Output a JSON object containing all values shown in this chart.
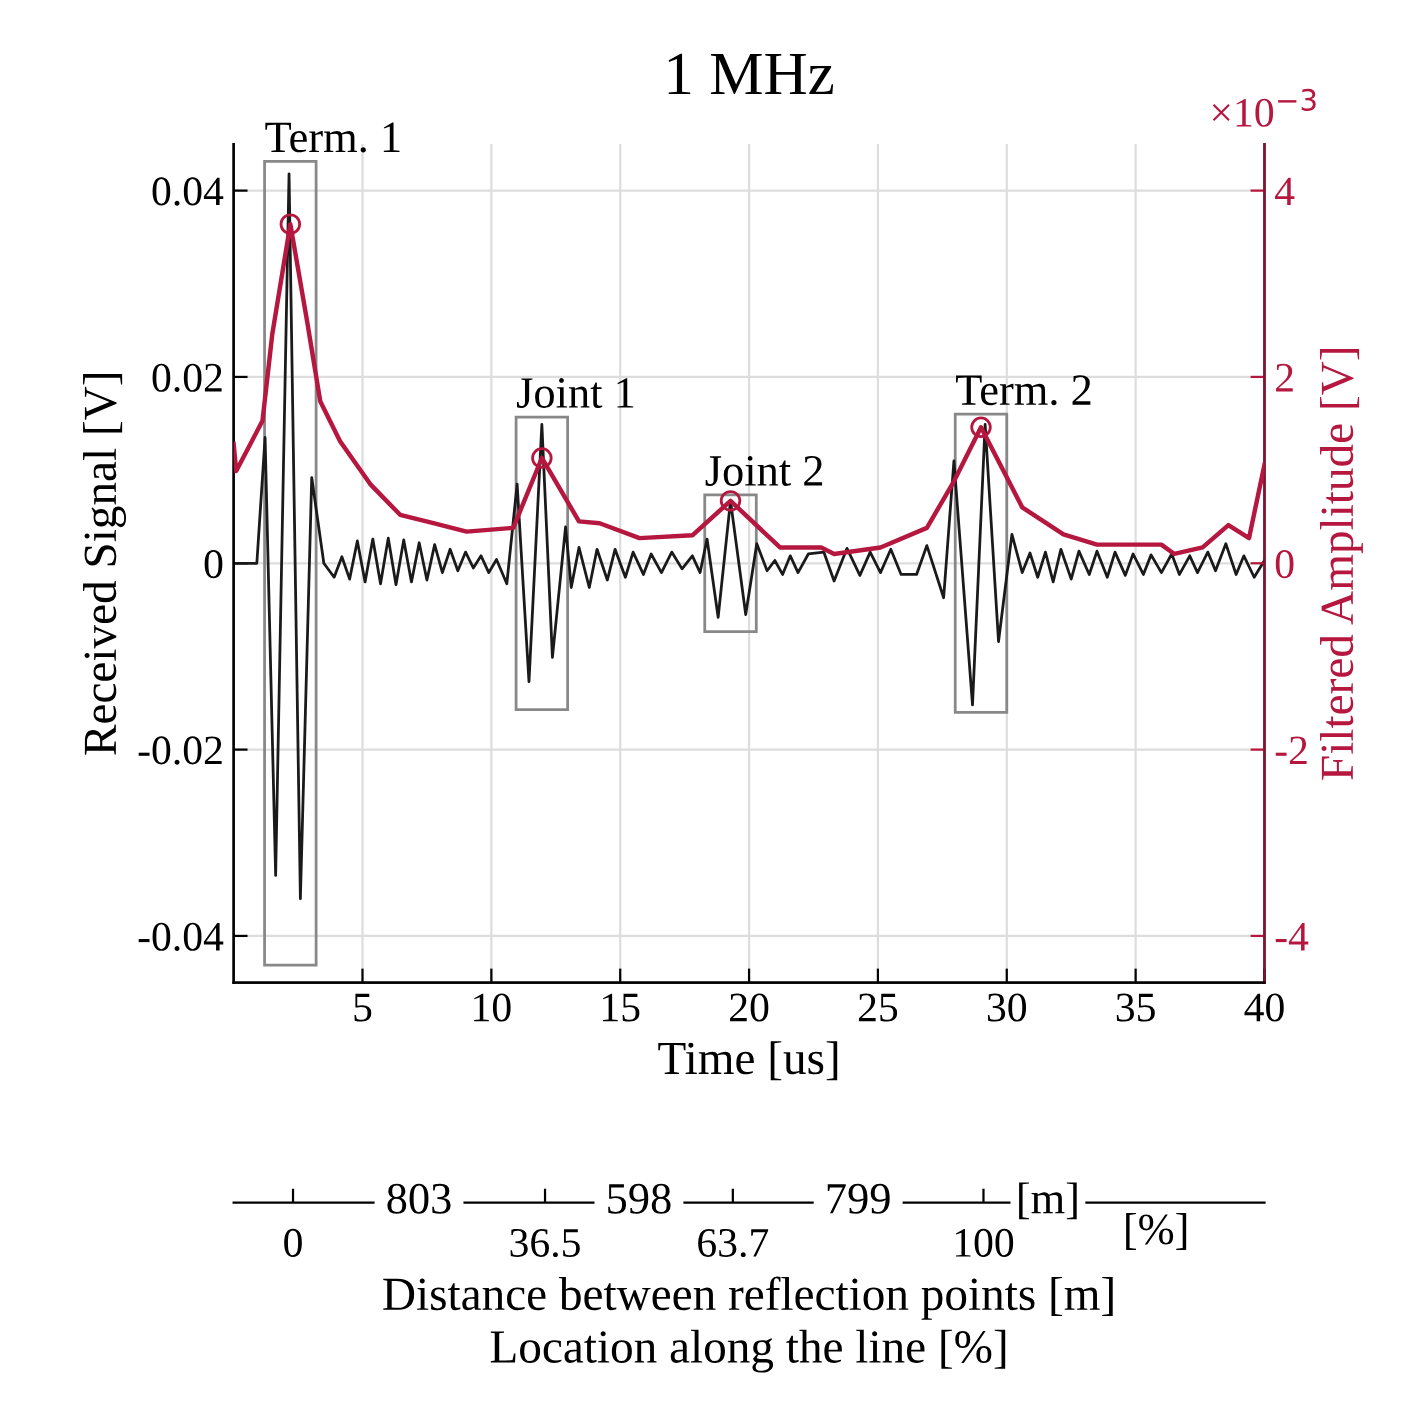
{
  "chart_data": {
    "type": "line",
    "title": "1 MHz",
    "xlabel": "Time [us]",
    "ylabel": "Received Signal [V]",
    "y2label": "Filtered Amplitude [V]",
    "x2label": "Distance between reflection points [m]\nLocation along the line [%]",
    "xlim": [
      0,
      40
    ],
    "xticks": [
      5,
      10,
      15,
      20,
      25,
      30,
      35,
      40
    ],
    "ylim": [
      -0.045,
      0.045
    ],
    "yticks": [
      {
        "value": -0.04,
        "label": "-0.04"
      },
      {
        "value": -0.02,
        "label": "-0.02"
      },
      0,
      0.02,
      0.04
    ],
    "y2lim": [
      -4.5,
      4.5
    ],
    "y2ticks": [
      {
        "value": -4,
        "label": "-4"
      },
      {
        "value": -2,
        "label": "-2"
      },
      0,
      2,
      4
    ],
    "x2lim": [
      -8.6,
      140.7
    ],
    "x2ticks": [
      0,
      36.5,
      63.7,
      100
    ],
    "grid": true,
    "series": [
      {
        "color": "#1a1a1a",
        "marker": "none",
        "x": [
          0,
          0.9,
          1.22,
          1.63,
          2.15,
          2.59,
          3.03,
          3.5,
          3.9,
          4.2,
          4.5,
          4.8,
          5.1,
          5.4,
          5.7,
          6.0,
          6.3,
          6.6,
          6.9,
          7.2,
          7.5,
          7.8,
          8.1,
          8.4,
          8.7,
          9.0,
          9.3,
          9.6,
          9.9,
          10.2,
          10.6,
          11.0,
          11.46,
          11.96,
          12.37,
          12.88,
          13.1,
          13.4,
          13.8,
          14.1,
          14.5,
          14.8,
          15.2,
          15.5,
          15.9,
          16.2,
          16.6,
          17.0,
          17.4,
          17.8,
          18.1,
          18.37,
          18.8,
          19.28,
          19.87,
          20.3,
          20.7,
          21.0,
          21.3,
          21.6,
          21.9,
          22.3,
          22.9,
          23.3,
          23.8,
          24.3,
          24.7,
          25.1,
          25.5,
          25.9,
          26.5,
          26.9,
          27.55,
          27.95,
          28.67,
          29.16,
          29.68,
          30.2,
          30.6,
          30.9,
          31.2,
          31.5,
          31.8,
          32.1,
          32.5,
          32.8,
          33.2,
          33.5,
          33.9,
          34.2,
          34.6,
          34.9,
          35.3,
          35.6,
          36.0,
          36.4,
          36.7,
          37.1,
          37.4,
          37.8,
          38.1,
          38.5,
          38.9,
          39.2,
          39.6,
          40
        ],
        "values": [
          0,
          0,
          0.0135,
          -0.0335,
          0.0418,
          -0.036,
          0.0092,
          0,
          -0.0015,
          0.0007,
          -0.0017,
          0.0024,
          -0.002,
          0.0026,
          -0.0022,
          0.0027,
          -0.0023,
          0.0025,
          -0.002,
          0.0022,
          -0.0018,
          0.002,
          -0.001,
          0.0015,
          -0.0008,
          0.0012,
          -0.0005,
          0.0008,
          -0.001,
          0.0004,
          -0.0022,
          0.0085,
          -0.0127,
          0.0149,
          -0.0101,
          0.0039,
          -0.0026,
          0.0017,
          -0.0026,
          0.0015,
          -0.0018,
          0.0015,
          -0.0015,
          0.0012,
          -0.0012,
          0.001,
          -0.001,
          0.0012,
          -0.0006,
          0.0008,
          -0.001,
          0.0026,
          -0.0058,
          0.0067,
          -0.0055,
          0.0021,
          -0.0008,
          0.0003,
          -0.0012,
          0.0008,
          -0.001,
          0.001,
          0.0012,
          -0.0019,
          0.0016,
          -0.0013,
          0.0012,
          -0.001,
          0.0015,
          -0.0012,
          -0.0012,
          0.0019,
          -0.0037,
          0.011,
          -0.0152,
          0.0149,
          -0.0084,
          0.0031,
          -0.001,
          0.0011,
          -0.0015,
          0.0012,
          -0.002,
          0.0015,
          -0.0017,
          0.0013,
          -0.0012,
          0.0013,
          -0.0015,
          0.0012,
          -0.0013,
          0.001,
          -0.0012,
          0.0009,
          -0.001,
          0.001,
          -0.0012,
          0.0008,
          -0.001,
          0.0012,
          -0.0008,
          0.0021,
          -0.0012,
          0.0008,
          -0.0015,
          0.0003
        ]
      },
      {
        "axis": "y2",
        "color": "#b5173f",
        "marker": "none",
        "x": [
          0,
          0.1,
          1.12,
          1.5,
          2.2,
          2.85,
          3.36,
          4.13,
          5.3,
          6.46,
          7.75,
          9.04,
          10.85,
          11.96,
          13.4,
          14.2,
          15.75,
          17.8,
          19.28,
          21.2,
          22.8,
          23.3,
          25.1,
          26.9,
          27.95,
          29.0,
          30.6,
          32.2,
          33.5,
          36.0,
          36.5,
          37.6,
          38.6,
          39.4,
          40
        ],
        "values": [
          1.28,
          0.99,
          1.53,
          2.46,
          3.64,
          2.6,
          1.74,
          1.31,
          0.85,
          0.52,
          0.43,
          0.34,
          0.38,
          1.13,
          0.45,
          0.43,
          0.27,
          0.3,
          0.67,
          0.17,
          0.17,
          0.1,
          0.17,
          0.38,
          0.88,
          1.46,
          0.6,
          0.31,
          0.2,
          0.2,
          0.1,
          0.17,
          0.41,
          0.27,
          1.06
        ]
      },
      {
        "type": "scatter",
        "axis": "y2",
        "color": "#b5173f",
        "marker": "circle",
        "x": [
          2.2,
          11.96,
          19.28,
          29.0
        ],
        "values": [
          3.64,
          1.13,
          0.67,
          1.46
        ]
      }
    ],
    "annotations": [
      "Term. 1",
      "Joint 1",
      "Joint 2",
      "Term. 2",
      "803",
      "598",
      "799",
      "[m]",
      "[%]",
      "×10$^{−3}$"
    ]
  }
}
